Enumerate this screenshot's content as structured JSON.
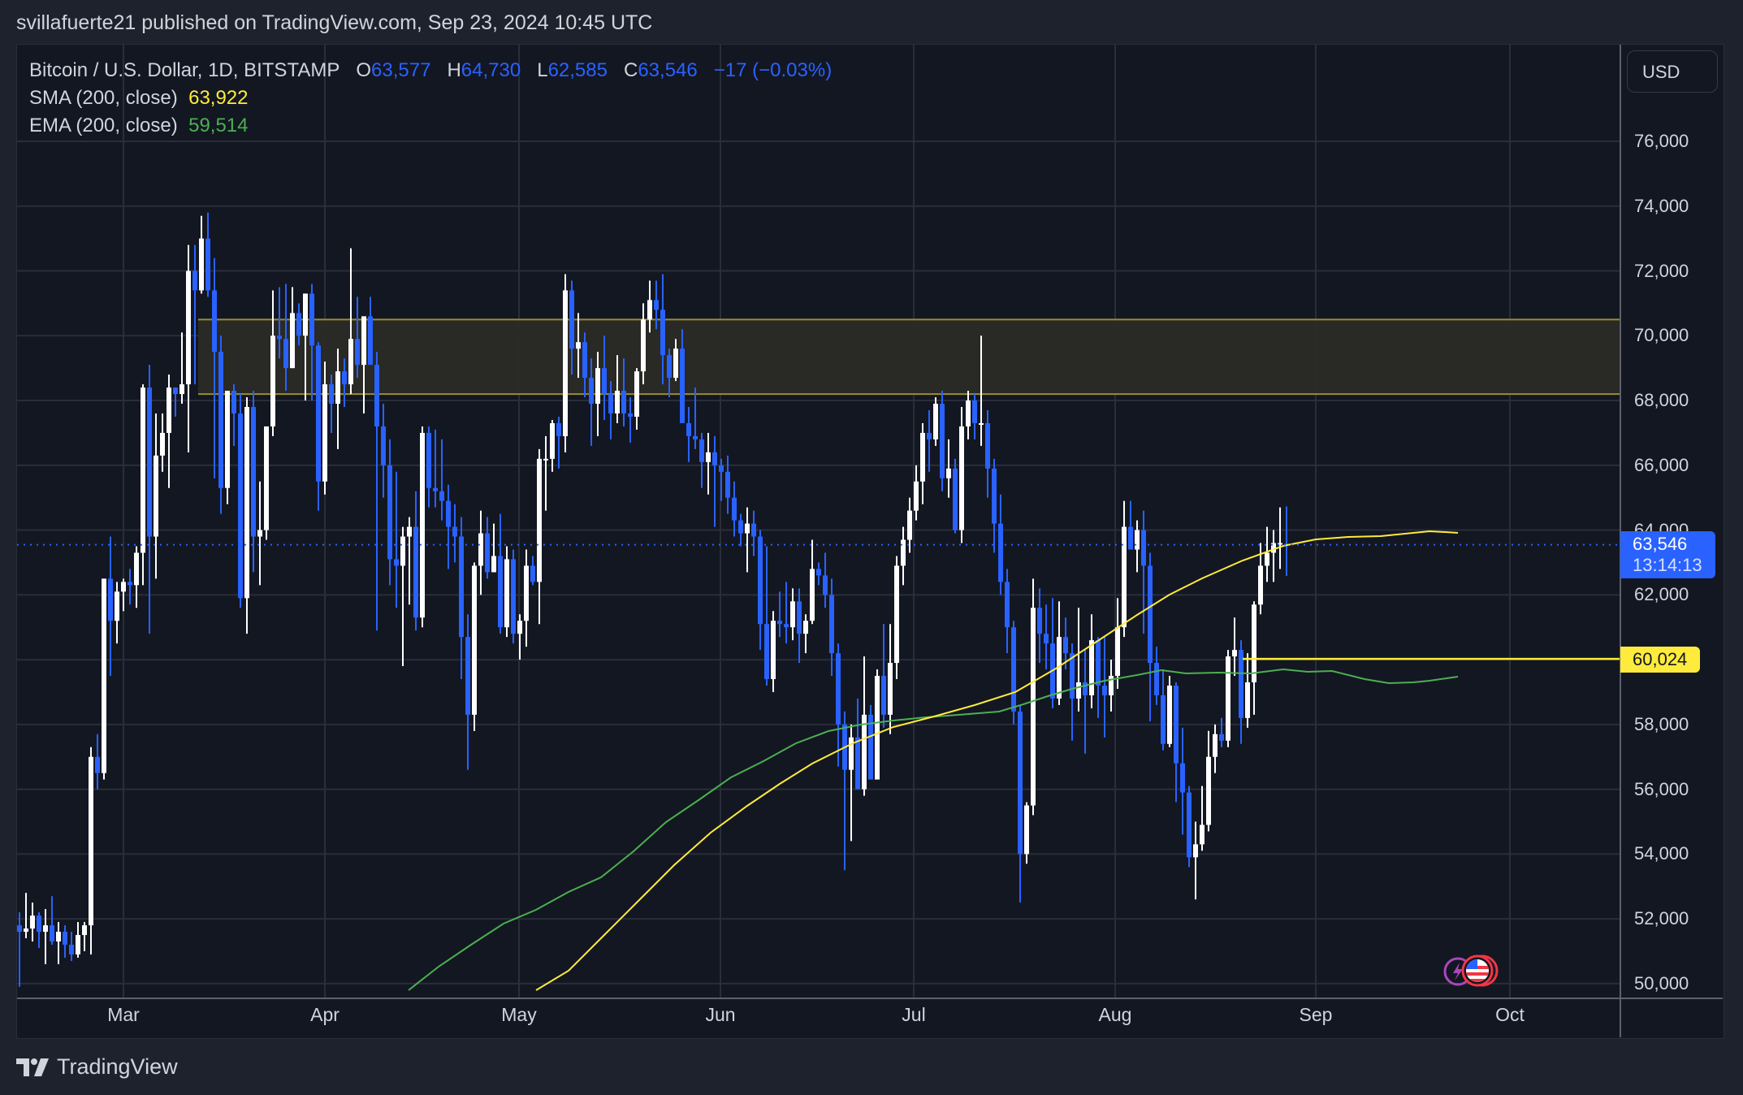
{
  "header": {
    "published": "svillafuerte21 published on TradingView.com, Sep 23, 2024 10:45 UTC"
  },
  "legend": {
    "symbol": "Bitcoin / U.S. Dollar, 1D, BITSTAMP",
    "o_label": "O",
    "o": "63,577",
    "h_label": "H",
    "h": "64,730",
    "l_label": "L",
    "l": "62,585",
    "c_label": "C",
    "c": "63,546",
    "change": "−17 (−0.03%)",
    "sma_label": "SMA (200, close)",
    "sma_value": "63,922",
    "ema_label": "EMA (200, close)",
    "ema_value": "59,514"
  },
  "price_axis": {
    "currency": "USD",
    "ticks": [
      "76,000",
      "74,000",
      "72,000",
      "70,000",
      "68,000",
      "66,000",
      "64,000",
      "62,000",
      "60,000",
      "58,000",
      "56,000",
      "54,000",
      "52,000",
      "50,000"
    ],
    "last_price": "63,546",
    "countdown": "13:14:13",
    "level_tag": "60,024"
  },
  "time_axis": {
    "months": [
      "Mar",
      "Apr",
      "May",
      "Jun",
      "Jul",
      "Aug",
      "Sep",
      "Oct"
    ]
  },
  "footer": {
    "brand": "TradingView"
  },
  "colors": {
    "up": "#ffffff",
    "down": "#2962ff",
    "sma": "#ffeb3b",
    "ema": "#4caf50",
    "zone_fill": "#2a2a26",
    "zone_border": "#9a8c2e",
    "level": "#ffeb3b",
    "grid": "#2a2e39",
    "bg": "#131722"
  },
  "chart_data": {
    "type": "candlestick",
    "title": "Bitcoin / U.S. Dollar, 1D, BITSTAMP",
    "start_date": "2024-02-14",
    "ylim": [
      50000,
      77500
    ],
    "candles_ohlc": [
      [
        51800,
        52200,
        49900,
        51600
      ],
      [
        51600,
        52800,
        51400,
        51700
      ],
      [
        51700,
        52500,
        51300,
        52100
      ],
      [
        52100,
        52200,
        51100,
        51600
      ],
      [
        51600,
        52300,
        50600,
        51800
      ],
      [
        51800,
        52700,
        51200,
        51300
      ],
      [
        51300,
        51900,
        50600,
        51600
      ],
      [
        51600,
        51800,
        50800,
        51200
      ],
      [
        51200,
        51600,
        50700,
        50900
      ],
      [
        50900,
        51900,
        50800,
        51500
      ],
      [
        51500,
        51900,
        51000,
        51800
      ],
      [
        51800,
        57300,
        50900,
        57000
      ],
      [
        57000,
        57700,
        56000,
        56500
      ],
      [
        56500,
        62500,
        56300,
        62500
      ],
      [
        62500,
        63800,
        59500,
        61200
      ],
      [
        61200,
        62400,
        60500,
        62100
      ],
      [
        62100,
        62500,
        61500,
        62400
      ],
      [
        62400,
        62800,
        61700,
        62300
      ],
      [
        62300,
        63500,
        61600,
        63300
      ],
      [
        63300,
        68500,
        62300,
        68400
      ],
      [
        68400,
        69100,
        60800,
        63800
      ],
      [
        63800,
        67600,
        62500,
        66300
      ],
      [
        66300,
        67600,
        65800,
        67000
      ],
      [
        67000,
        68800,
        65300,
        68400
      ],
      [
        68400,
        68400,
        67500,
        68200
      ],
      [
        68200,
        70100,
        67900,
        68500
      ],
      [
        68500,
        72800,
        66400,
        72000
      ],
      [
        72000,
        72800,
        68500,
        71400
      ],
      [
        71400,
        73700,
        71300,
        73000
      ],
      [
        73000,
        73800,
        71200,
        71400
      ],
      [
        71400,
        72400,
        65600,
        69500
      ],
      [
        69500,
        70000,
        64500,
        65300
      ],
      [
        65300,
        68100,
        64800,
        68300
      ],
      [
        68300,
        68500,
        66600,
        67600
      ],
      [
        67600,
        68200,
        61600,
        61900
      ],
      [
        61900,
        68100,
        60800,
        67800
      ],
      [
        67800,
        68300,
        62700,
        63800
      ],
      [
        63800,
        65500,
        62300,
        64000
      ],
      [
        64000,
        67200,
        63700,
        67200
      ],
      [
        67200,
        71400,
        66900,
        70000
      ],
      [
        70000,
        71500,
        69300,
        69900
      ],
      [
        69900,
        71600,
        68300,
        69000
      ],
      [
        69000,
        71500,
        69000,
        70700
      ],
      [
        70700,
        71000,
        69700,
        70000
      ],
      [
        70000,
        71300,
        68000,
        71300
      ],
      [
        71300,
        71600,
        68000,
        69700
      ],
      [
        69700,
        69800,
        64600,
        65500
      ],
      [
        65500,
        69200,
        65100,
        68500
      ],
      [
        68500,
        68800,
        67000,
        67900
      ],
      [
        67900,
        69600,
        66500,
        68900
      ],
      [
        68900,
        69300,
        67800,
        68500
      ],
      [
        68500,
        72700,
        68200,
        69900
      ],
      [
        69900,
        71200,
        68700,
        69100
      ],
      [
        69100,
        70300,
        67600,
        70600
      ],
      [
        70600,
        71200,
        69200,
        69100
      ],
      [
        69100,
        69500,
        60900,
        67200
      ],
      [
        67200,
        67900,
        65000,
        66000
      ],
      [
        66000,
        66800,
        62300,
        63100
      ],
      [
        63100,
        65800,
        61600,
        62900
      ],
      [
        62900,
        64100,
        59800,
        63800
      ],
      [
        63800,
        64400,
        61700,
        64100
      ],
      [
        64100,
        65200,
        60900,
        61300
      ],
      [
        61300,
        67200,
        61000,
        67000
      ],
      [
        67000,
        67200,
        64700,
        65300
      ],
      [
        65300,
        67100,
        64700,
        65200
      ],
      [
        65200,
        66800,
        64300,
        64900
      ],
      [
        64900,
        65400,
        62800,
        64100
      ],
      [
        64100,
        64800,
        63000,
        63800
      ],
      [
        63800,
        64400,
        59400,
        60700
      ],
      [
        60700,
        61400,
        56600,
        58300
      ],
      [
        58300,
        63000,
        57800,
        62900
      ],
      [
        62900,
        64600,
        62000,
        63900
      ],
      [
        63900,
        64400,
        62500,
        62700
      ],
      [
        62700,
        64200,
        62700,
        63200
      ],
      [
        63200,
        64500,
        60800,
        61000
      ],
      [
        61000,
        63500,
        60700,
        63100
      ],
      [
        63100,
        63400,
        60500,
        60800
      ],
      [
        60800,
        61400,
        60000,
        61200
      ],
      [
        61200,
        63400,
        60400,
        62900
      ],
      [
        62900,
        63200,
        62300,
        62400
      ],
      [
        62400,
        66500,
        61100,
        66200
      ],
      [
        66200,
        66900,
        64600,
        66200
      ],
      [
        66200,
        67400,
        65800,
        67300
      ],
      [
        67300,
        67500,
        65900,
        66900
      ],
      [
        66900,
        71900,
        66400,
        71400
      ],
      [
        71400,
        71700,
        68800,
        69600
      ],
      [
        69600,
        70700,
        68700,
        69800
      ],
      [
        69800,
        70100,
        68100,
        68700
      ],
      [
        68700,
        69300,
        66600,
        67900
      ],
      [
        67900,
        69500,
        66900,
        69000
      ],
      [
        69000,
        70000,
        67400,
        68200
      ],
      [
        68200,
        68600,
        66800,
        67600
      ],
      [
        67600,
        69400,
        67300,
        68300
      ],
      [
        68300,
        69300,
        67200,
        67600
      ],
      [
        67600,
        68100,
        66700,
        67500
      ],
      [
        67500,
        69000,
        67100,
        68900
      ],
      [
        68900,
        71000,
        68500,
        70500
      ],
      [
        70500,
        71700,
        70100,
        71100
      ],
      [
        71100,
        71700,
        70200,
        70800
      ],
      [
        70800,
        71900,
        68500,
        69400
      ],
      [
        69400,
        69600,
        68100,
        68700
      ],
      [
        68700,
        69900,
        68600,
        69600
      ],
      [
        69600,
        70200,
        67600,
        67300
      ],
      [
        67300,
        67800,
        66100,
        66900
      ],
      [
        66900,
        68400,
        66500,
        66800
      ],
      [
        66800,
        67000,
        65300,
        66100
      ],
      [
        66100,
        67000,
        65100,
        66400
      ],
      [
        66400,
        66900,
        64100,
        66000
      ],
      [
        66000,
        66200,
        64900,
        65800
      ],
      [
        65800,
        66300,
        64500,
        65000
      ],
      [
        65000,
        65500,
        63800,
        64300
      ],
      [
        64300,
        64500,
        63500,
        63900
      ],
      [
        63900,
        64700,
        62700,
        64200
      ],
      [
        64200,
        64600,
        63200,
        63800
      ],
      [
        63800,
        64000,
        60300,
        61100
      ],
      [
        61100,
        63500,
        59200,
        59400
      ],
      [
        59400,
        61500,
        59000,
        61200
      ],
      [
        61200,
        62100,
        60700,
        61100
      ],
      [
        61100,
        62400,
        60500,
        61000
      ],
      [
        61000,
        62200,
        60600,
        61800
      ],
      [
        61800,
        62200,
        59900,
        60800
      ],
      [
        60800,
        61400,
        60200,
        61200
      ],
      [
        61200,
        63700,
        61100,
        62800
      ],
      [
        62800,
        63000,
        62300,
        62600
      ],
      [
        62600,
        63300,
        61600,
        62000
      ],
      [
        62000,
        62500,
        59500,
        60200
      ],
      [
        60200,
        60500,
        56700,
        58000
      ],
      [
        58000,
        58400,
        53500,
        56600
      ],
      [
        56600,
        58000,
        54400,
        57600
      ],
      [
        57600,
        58800,
        56000,
        56000
      ],
      [
        56000,
        60100,
        55800,
        58300
      ],
      [
        58300,
        58600,
        56600,
        56300
      ],
      [
        56300,
        59700,
        57200,
        59500
      ],
      [
        59500,
        61100,
        57900,
        58300
      ],
      [
        58300,
        61100,
        57700,
        59900
      ],
      [
        59900,
        63200,
        59400,
        62900
      ],
      [
        62900,
        64100,
        62300,
        63700
      ],
      [
        63700,
        65000,
        63300,
        64600
      ],
      [
        64600,
        66000,
        64300,
        65500
      ],
      [
        65500,
        67300,
        64800,
        67000
      ],
      [
        67000,
        67700,
        65800,
        66800
      ],
      [
        66800,
        68100,
        66600,
        67900
      ],
      [
        67900,
        68300,
        65200,
        65600
      ],
      [
        65600,
        66800,
        65000,
        65900
      ],
      [
        65900,
        66200,
        63900,
        64000
      ],
      [
        64000,
        67800,
        63600,
        67200
      ],
      [
        67200,
        68300,
        66800,
        68000
      ],
      [
        68000,
        68200,
        66800,
        67300
      ],
      [
        67300,
        70000,
        66600,
        67300
      ],
      [
        67300,
        67700,
        65000,
        65900
      ],
      [
        65900,
        66200,
        63300,
        64200
      ],
      [
        64200,
        65100,
        62000,
        62400
      ],
      [
        62400,
        62800,
        60200,
        61000
      ],
      [
        61000,
        61200,
        58000,
        58400
      ],
      [
        58400,
        58600,
        52500,
        54000
      ],
      [
        54000,
        55600,
        53700,
        55500
      ],
      [
        55500,
        62500,
        55200,
        61600
      ],
      [
        61600,
        62200,
        59900,
        60800
      ],
      [
        60800,
        61700,
        59700,
        60500
      ],
      [
        60500,
        61900,
        58500,
        58800
      ],
      [
        58800,
        61800,
        58600,
        60700
      ],
      [
        60700,
        61300,
        59700,
        60200
      ],
      [
        60200,
        60500,
        57500,
        58800
      ],
      [
        58800,
        61600,
        58400,
        59300
      ],
      [
        59300,
        60300,
        57100,
        58900
      ],
      [
        58900,
        61400,
        58500,
        60600
      ],
      [
        60600,
        60700,
        58200,
        59200
      ],
      [
        59200,
        60700,
        57600,
        58900
      ],
      [
        58900,
        60000,
        58400,
        59500
      ],
      [
        59500,
        61900,
        59100,
        61000
      ],
      [
        61000,
        64900,
        60700,
        64100
      ],
      [
        64100,
        64900,
        63600,
        63400
      ],
      [
        63400,
        64300,
        62700,
        64000
      ],
      [
        64000,
        64600,
        60800,
        62900
      ],
      [
        62900,
        63300,
        58100,
        59900
      ],
      [
        59900,
        60400,
        58600,
        58900
      ],
      [
        58900,
        59700,
        57200,
        57400
      ],
      [
        57400,
        59500,
        57300,
        59200
      ],
      [
        59200,
        59300,
        55600,
        56800
      ],
      [
        56800,
        57900,
        54600,
        55900
      ],
      [
        55900,
        56100,
        53600,
        53900
      ],
      [
        53900,
        55000,
        52600,
        54300
      ],
      [
        54300,
        56100,
        54100,
        54900
      ],
      [
        54900,
        57800,
        54700,
        57000
      ],
      [
        57000,
        58000,
        56500,
        57700
      ],
      [
        57700,
        58200,
        57300,
        57500
      ],
      [
        57500,
        60300,
        57300,
        60100
      ],
      [
        60100,
        61300,
        59500,
        60300
      ],
      [
        60300,
        60600,
        57400,
        58200
      ],
      [
        58200,
        60200,
        57900,
        59300
      ],
      [
        59300,
        61800,
        58300,
        61700
      ],
      [
        61700,
        63600,
        61400,
        62900
      ],
      [
        62900,
        64100,
        62400,
        63300
      ],
      [
        63300,
        64000,
        62400,
        63600
      ],
      [
        63600,
        64700,
        62800,
        63600
      ],
      [
        63577,
        64730,
        62585,
        63546
      ]
    ],
    "indicators": {
      "SMA_200_close": {
        "color": "#ffeb3b",
        "last": 63922
      },
      "EMA_200_close": {
        "color": "#4caf50",
        "last": 59514
      }
    },
    "zone": {
      "top": 70500,
      "bottom": 68200,
      "from": "2024-03-13"
    },
    "horizontal_level": 60024,
    "last_price": 63546,
    "xlabel": "",
    "ylabel": "USD"
  }
}
